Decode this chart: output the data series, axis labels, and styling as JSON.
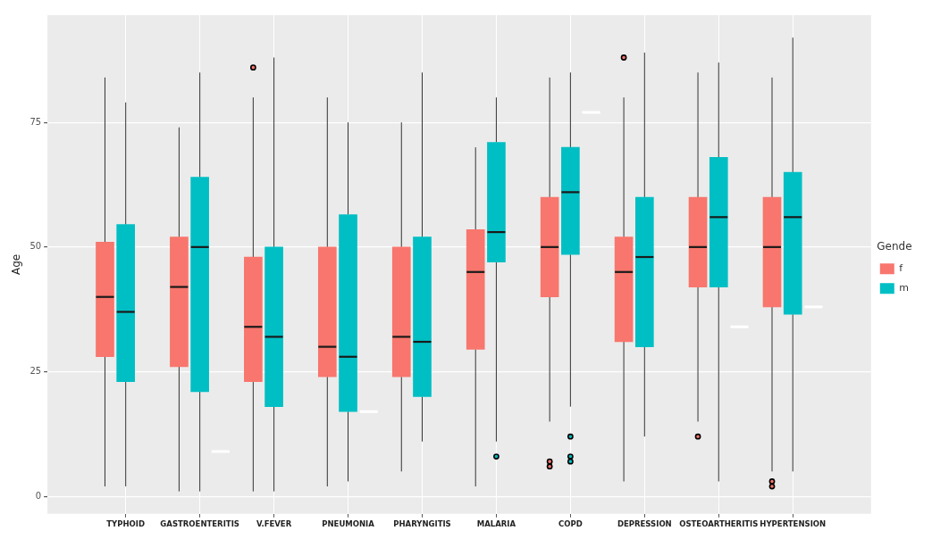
{
  "chart_data": {
    "type": "box",
    "ylabel": "Age",
    "legend_title": "Gende",
    "legend": "right",
    "grid": true,
    "categories": [
      "TYPHOID",
      "GASTROENTERITIS",
      "V.FEVER",
      "PNEUMONIA",
      "PHARYNGITIS",
      "MALARIA",
      "COPD",
      "DEPRESSION",
      "OSTEOARTHERITIS",
      "HYPERTENSION"
    ],
    "ylim": [
      -3.5,
      96.5
    ],
    "yticks": [
      0,
      25,
      50,
      75
    ],
    "series": [
      {
        "name": "f",
        "color": "#f8766d",
        "boxes": [
          {
            "low": 2,
            "q1": 28,
            "median": 40,
            "q3": 51,
            "high": 84
          },
          {
            "low": 1,
            "q1": 26,
            "median": 42,
            "q3": 52,
            "high": 74
          },
          {
            "low": 1,
            "q1": 23,
            "median": 34,
            "q3": 48,
            "high": 80,
            "outliers": [
              86
            ]
          },
          {
            "low": 2,
            "q1": 24,
            "median": 30,
            "q3": 50,
            "high": 80
          },
          {
            "low": 5,
            "q1": 24,
            "median": 32,
            "q3": 50,
            "high": 75
          },
          {
            "low": 2,
            "q1": 29.5,
            "median": 45,
            "q3": 53.5,
            "high": 70
          },
          {
            "low": 15,
            "q1": 40,
            "median": 50,
            "q3": 60,
            "high": 84,
            "outliers": [
              7,
              6
            ]
          },
          {
            "low": 3,
            "q1": 31,
            "median": 45,
            "q3": 52,
            "high": 80,
            "outliers": [
              88
            ]
          },
          {
            "low": 15,
            "q1": 42,
            "median": 50,
            "q3": 60,
            "high": 85,
            "outliers": [
              12
            ]
          },
          {
            "low": 5,
            "q1": 38,
            "median": 50,
            "q3": 60,
            "high": 84,
            "outliers": [
              3,
              2
            ]
          }
        ]
      },
      {
        "name": "m",
        "color": "#00bfc4",
        "boxes": [
          {
            "low": 2,
            "q1": 23,
            "median": 37,
            "q3": 54.5,
            "high": 79
          },
          {
            "low": 1,
            "q1": 21,
            "median": 50,
            "q3": 64,
            "high": 85
          },
          {
            "low": 1,
            "q1": 18,
            "median": 32,
            "q3": 50,
            "high": 88
          },
          {
            "low": 3,
            "q1": 17,
            "median": 28,
            "q3": 56.5,
            "high": 75
          },
          {
            "low": 11,
            "q1": 20,
            "median": 31,
            "q3": 52,
            "high": 85
          },
          {
            "low": 11,
            "q1": 47,
            "median": 53,
            "q3": 71,
            "high": 80,
            "outliers": [
              8
            ]
          },
          {
            "low": 18,
            "q1": 48.5,
            "median": 61,
            "q3": 70,
            "high": 85,
            "outliers": [
              12,
              8,
              7
            ]
          },
          {
            "low": 12,
            "q1": 30,
            "median": 48,
            "q3": 60,
            "high": 89
          },
          {
            "low": 3,
            "q1": 42,
            "median": 56,
            "q3": 68,
            "high": 87
          },
          {
            "low": 5,
            "q1": 36.5,
            "median": 56,
            "q3": 65,
            "high": 92
          }
        ]
      },
      {
        "color": "#ffffff",
        "boxes": [
          null,
          {
            "low": 9,
            "q1": 9,
            "median": 9,
            "q3": 9,
            "high": 9
          },
          null,
          {
            "low": 17,
            "q1": 17,
            "median": 17,
            "q3": 17,
            "high": 17
          },
          null,
          null,
          {
            "low": 77,
            "q1": 77,
            "median": 77,
            "q3": 77,
            "high": 77
          },
          null,
          {
            "low": 34,
            "q1": 34,
            "median": 34,
            "q3": 34,
            "high": 34
          },
          {
            "low": 38,
            "q1": 38,
            "median": 38,
            "q3": 38,
            "high": 38
          }
        ]
      }
    ]
  }
}
